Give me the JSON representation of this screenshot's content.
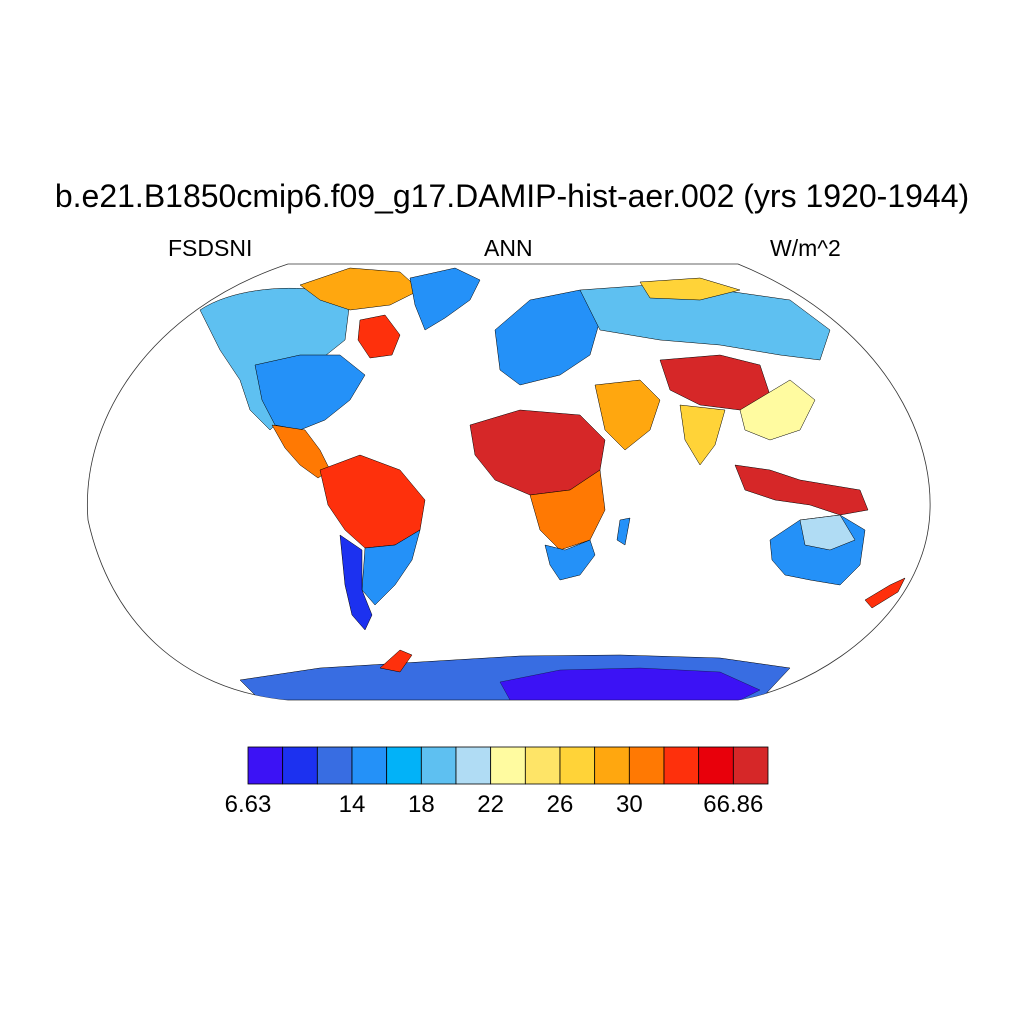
{
  "title": "b.e21.B1850cmip6.f09_g17.DAMIP-hist-aer.002 (yrs 1920-1944)",
  "variable": "FSDSNI",
  "season": "ANN",
  "units": "W/m^2",
  "colorbar": {
    "colors": [
      "#3c12f5",
      "#1c31f0",
      "#386de2",
      "#2491f8",
      "#02b2f8",
      "#5ec0f1",
      "#b0dcf4",
      "#fffba0",
      "#fee467",
      "#ffd338",
      "#ffa70f",
      "#ff7903",
      "#fe300c",
      "#e8000b",
      "#d62728"
    ],
    "labels": [
      {
        "text": "6.63",
        "boundary": 0
      },
      {
        "text": "14",
        "boundary": 3
      },
      {
        "text": "18",
        "boundary": 5
      },
      {
        "text": "22",
        "boundary": 7
      },
      {
        "text": "26",
        "boundary": 9
      },
      {
        "text": "30",
        "boundary": 11
      },
      {
        "text": "66.86",
        "boundary": 14
      }
    ]
  },
  "map_regions": [
    {
      "region": "Canada west / Rockies",
      "level": 6
    },
    {
      "region": "Canadian Arctic",
      "level": 10
    },
    {
      "region": "Hudson Bay east",
      "level": 12
    },
    {
      "region": "Greenland",
      "level": 4
    },
    {
      "region": "United States",
      "level": 4
    },
    {
      "region": "Mexico / Central America",
      "level": 11
    },
    {
      "region": "Amazon",
      "level": 12
    },
    {
      "region": "Eastern South America",
      "level": 5
    },
    {
      "region": "Andes / Patagonia",
      "level": 1
    },
    {
      "region": "Sahara",
      "level": 14
    },
    {
      "region": "Central Africa",
      "level": 11
    },
    {
      "region": "Southern Africa",
      "level": 5
    },
    {
      "region": "Europe",
      "level": 4
    },
    {
      "region": "Siberia",
      "level": 5
    },
    {
      "region": "Middle East",
      "level": 10
    },
    {
      "region": "Tibet / China",
      "level": 14
    },
    {
      "region": "India",
      "level": 9
    },
    {
      "region": "Maritime Continent",
      "level": 14
    },
    {
      "region": "Australia",
      "level": 4
    },
    {
      "region": "New Zealand",
      "level": 12
    },
    {
      "region": "Antarctica interior",
      "level": 0
    },
    {
      "region": "Antarctic coast",
      "level": 3
    }
  ]
}
